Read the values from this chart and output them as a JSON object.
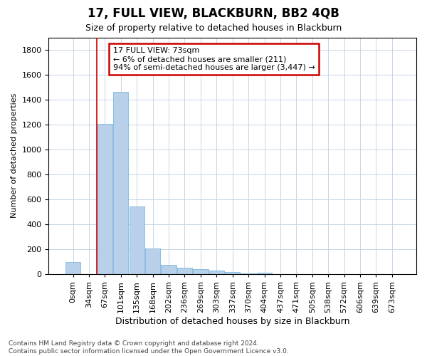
{
  "title": "17, FULL VIEW, BLACKBURN, BB2 4QB",
  "subtitle": "Size of property relative to detached houses in Blackburn",
  "xlabel": "Distribution of detached houses by size in Blackburn",
  "ylabel": "Number of detached properties",
  "footer_line1": "Contains HM Land Registry data © Crown copyright and database right 2024.",
  "footer_line2": "Contains public sector information licensed under the Open Government Licence v3.0.",
  "bar_labels": [
    "0sqm",
    "34sqm",
    "67sqm",
    "101sqm",
    "135sqm",
    "168sqm",
    "202sqm",
    "236sqm",
    "269sqm",
    "303sqm",
    "337sqm",
    "370sqm",
    "404sqm",
    "437sqm",
    "471sqm",
    "505sqm",
    "538sqm",
    "572sqm",
    "606sqm",
    "639sqm",
    "673sqm"
  ],
  "bar_values": [
    95,
    0,
    1205,
    1460,
    540,
    205,
    75,
    50,
    40,
    28,
    15,
    8,
    10,
    0,
    0,
    0,
    0,
    0,
    0,
    0,
    0
  ],
  "bar_color": "#b8d0ea",
  "bar_edge_color": "#6aaed6",
  "grid_color": "#c8d4e8",
  "annotation_text": "17 FULL VIEW: 73sqm\n← 6% of detached houses are smaller (211)\n94% of semi-detached houses are larger (3,447) →",
  "annotation_box_color": "white",
  "annotation_box_edge_color": "#cc0000",
  "vline_x": 2,
  "vline_color": "#cc0000",
  "ylim": [
    0,
    1900
  ],
  "yticks": [
    0,
    200,
    400,
    600,
    800,
    1000,
    1200,
    1400,
    1600,
    1800
  ],
  "background_color": "white",
  "plot_bg_color": "white",
  "title_fontsize": 12,
  "subtitle_fontsize": 9,
  "xlabel_fontsize": 9,
  "ylabel_fontsize": 8,
  "tick_fontsize": 8,
  "annotation_fontsize": 8,
  "footer_fontsize": 6.5
}
